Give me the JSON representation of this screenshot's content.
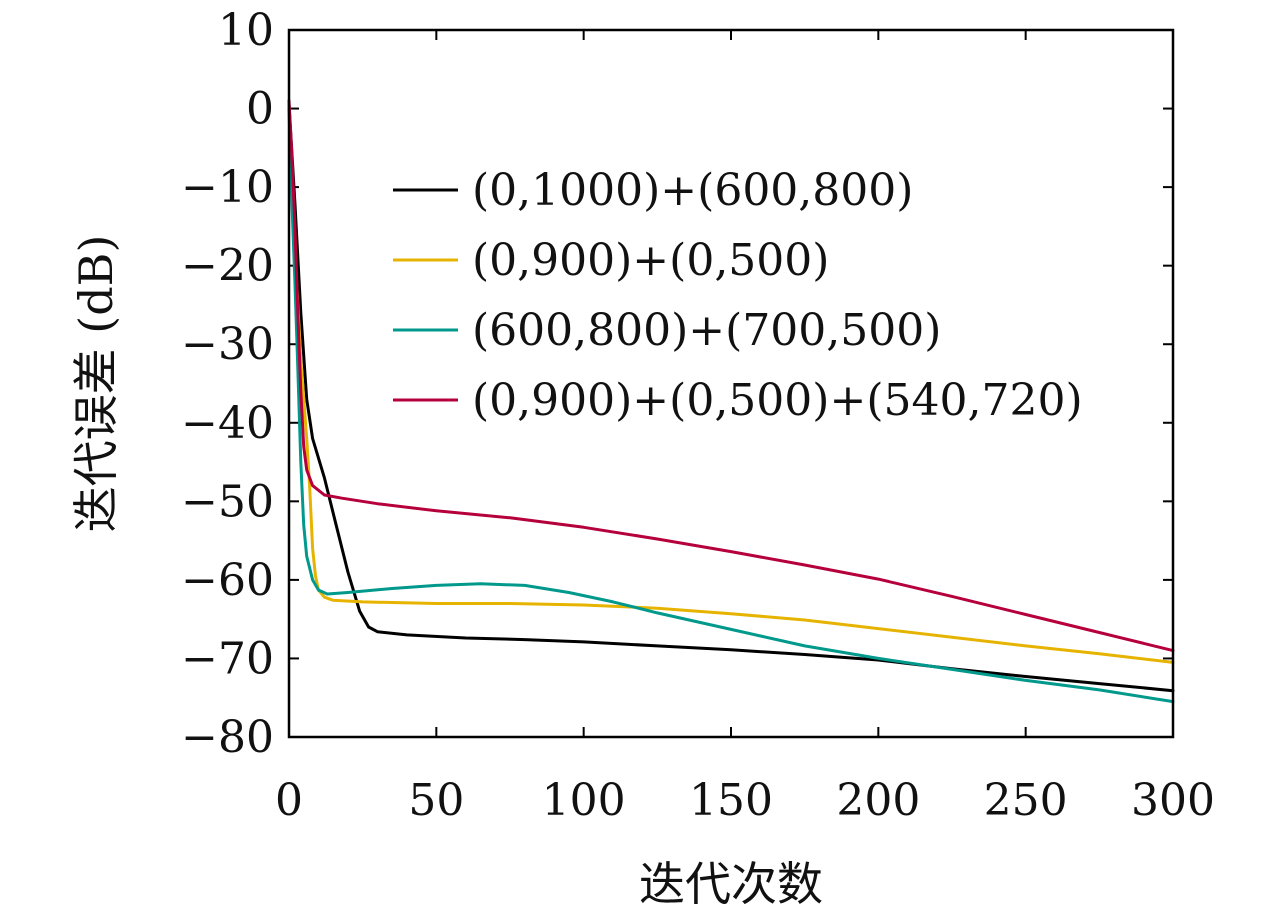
{
  "chart_data": {
    "type": "line",
    "xlabel": "迭代次数",
    "ylabel": "迭代误差 (dB)",
    "xlim": [
      0,
      300
    ],
    "ylim": [
      -80,
      10
    ],
    "x_ticks": [
      {
        "value": 0,
        "label": "0"
      },
      {
        "value": 50,
        "label": "50"
      },
      {
        "value": 100,
        "label": "100"
      },
      {
        "value": 150,
        "label": "150"
      },
      {
        "value": 200,
        "label": "200"
      },
      {
        "value": 250,
        "label": "250"
      },
      {
        "value": 300,
        "label": "300"
      }
    ],
    "y_ticks": [
      {
        "value": 10,
        "label": "10"
      },
      {
        "value": 0,
        "label": "0"
      },
      {
        "value": -10,
        "label": "−10"
      },
      {
        "value": -20,
        "label": "−20"
      },
      {
        "value": -30,
        "label": "−30"
      },
      {
        "value": -40,
        "label": "−40"
      },
      {
        "value": -50,
        "label": "−50"
      },
      {
        "value": -60,
        "label": "−60"
      },
      {
        "value": -70,
        "label": "−70"
      },
      {
        "value": -80,
        "label": "−80"
      }
    ],
    "grid": false,
    "legend_position": "top-right",
    "series": [
      {
        "name": "(0,1000)+(600,800)",
        "color": "#000000",
        "points": [
          [
            0,
            0.5
          ],
          [
            2,
            -12
          ],
          [
            4,
            -26
          ],
          [
            6,
            -37
          ],
          [
            8,
            -42
          ],
          [
            12,
            -47
          ],
          [
            16,
            -53
          ],
          [
            20,
            -59
          ],
          [
            24,
            -64
          ],
          [
            27,
            -66
          ],
          [
            30,
            -66.6
          ],
          [
            40,
            -67
          ],
          [
            60,
            -67.4
          ],
          [
            80,
            -67.6
          ],
          [
            100,
            -67.9
          ],
          [
            125,
            -68.4
          ],
          [
            150,
            -68.9
          ],
          [
            175,
            -69.5
          ],
          [
            200,
            -70.2
          ],
          [
            225,
            -71.3
          ],
          [
            250,
            -72.3
          ],
          [
            275,
            -73.2
          ],
          [
            300,
            -74.1
          ]
        ]
      },
      {
        "name": "(0,900)+(0,500)",
        "color": "#e6b400",
        "points": [
          [
            0,
            0.5
          ],
          [
            1,
            -8
          ],
          [
            2,
            -18
          ],
          [
            4,
            -32
          ],
          [
            6,
            -42
          ],
          [
            7,
            -48
          ],
          [
            8,
            -56
          ],
          [
            9,
            -59.5
          ],
          [
            10,
            -61.3
          ],
          [
            12,
            -62.2
          ],
          [
            15,
            -62.6
          ],
          [
            25,
            -62.8
          ],
          [
            50,
            -63.0
          ],
          [
            75,
            -63.0
          ],
          [
            100,
            -63.2
          ],
          [
            125,
            -63.6
          ],
          [
            150,
            -64.3
          ],
          [
            175,
            -65.1
          ],
          [
            200,
            -66.2
          ],
          [
            225,
            -67.3
          ],
          [
            250,
            -68.4
          ],
          [
            275,
            -69.4
          ],
          [
            300,
            -70.5
          ]
        ]
      },
      {
        "name": "(600,800)+(700,500)",
        "color": "#00998c",
        "points": [
          [
            0,
            0
          ],
          [
            1,
            -12
          ],
          [
            2,
            -22
          ],
          [
            3,
            -33
          ],
          [
            4,
            -45
          ],
          [
            5,
            -53
          ],
          [
            6,
            -57
          ],
          [
            8,
            -60
          ],
          [
            10,
            -61.3
          ],
          [
            13,
            -61.8
          ],
          [
            20,
            -61.6
          ],
          [
            35,
            -61.1
          ],
          [
            50,
            -60.7
          ],
          [
            65,
            -60.5
          ],
          [
            80,
            -60.7
          ],
          [
            95,
            -61.6
          ],
          [
            110,
            -62.8
          ],
          [
            125,
            -64.2
          ],
          [
            150,
            -66.3
          ],
          [
            175,
            -68.4
          ],
          [
            200,
            -70.0
          ],
          [
            225,
            -71.4
          ],
          [
            250,
            -72.8
          ],
          [
            275,
            -74.0
          ],
          [
            300,
            -75.5
          ]
        ]
      },
      {
        "name": "(0,900)+(0,500)+(540,720)",
        "color": "#b5003c",
        "points": [
          [
            0,
            1
          ],
          [
            1,
            -6
          ],
          [
            2,
            -15
          ],
          [
            3,
            -26
          ],
          [
            4,
            -36
          ],
          [
            5,
            -43
          ],
          [
            6,
            -46
          ],
          [
            8,
            -48
          ],
          [
            12,
            -49.2
          ],
          [
            18,
            -49.6
          ],
          [
            30,
            -50.3
          ],
          [
            50,
            -51.2
          ],
          [
            75,
            -52.1
          ],
          [
            100,
            -53.3
          ],
          [
            125,
            -54.8
          ],
          [
            150,
            -56.4
          ],
          [
            175,
            -58.1
          ],
          [
            200,
            -59.9
          ],
          [
            225,
            -62.1
          ],
          [
            250,
            -64.4
          ],
          [
            275,
            -66.7
          ],
          [
            300,
            -69.0
          ]
        ]
      }
    ]
  }
}
